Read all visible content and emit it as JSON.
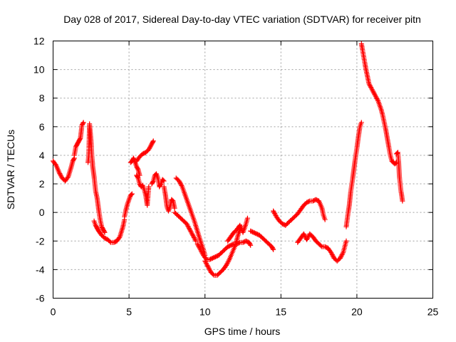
{
  "chart_data": {
    "type": "scatter",
    "title": "Day 028 of 2017, Sidereal Day-to-day VTEC variation (SDTVAR) for receiver pitn",
    "xlabel": "GPS time / hours",
    "ylabel": "SDTVAR / TECUs",
    "xlim": [
      0,
      25
    ],
    "ylim": [
      -6,
      12
    ],
    "xticks": [
      0,
      5,
      10,
      15,
      20,
      25
    ],
    "yticks": [
      -6,
      -4,
      -2,
      0,
      2,
      4,
      6,
      8,
      10,
      12
    ],
    "grid": true,
    "marker": "plus",
    "color": "#ff0000",
    "series": [
      {
        "segments": [
          {
            "x": [
              0.0,
              0.2,
              0.4,
              0.6,
              0.8,
              1.0,
              1.2,
              1.3,
              1.4
            ],
            "y": [
              3.6,
              3.3,
              2.8,
              2.4,
              2.2,
              2.5,
              3.2,
              3.6,
              3.8
            ]
          },
          {
            "x": [
              1.4,
              1.5,
              1.6,
              1.7,
              1.8,
              1.9,
              2.0
            ],
            "y": [
              4.0,
              4.6,
              4.8,
              5.0,
              5.2,
              6.1,
              6.3
            ]
          },
          {
            "x": [
              2.3,
              2.35,
              2.4,
              2.45,
              2.5,
              2.55,
              2.6
            ],
            "y": [
              3.5,
              4.0,
              6.2,
              5.6,
              5.0,
              4.0,
              3.4
            ]
          },
          {
            "x": [
              2.6,
              2.7,
              2.8,
              2.9,
              3.0,
              3.1,
              3.2,
              3.3,
              3.4
            ],
            "y": [
              3.3,
              2.5,
              1.5,
              1.0,
              0.2,
              -0.5,
              -1.0,
              -1.2,
              -1.4
            ]
          },
          {
            "x": [
              2.7,
              2.8,
              2.9,
              3.0,
              3.2,
              3.4,
              3.6,
              3.8,
              4.0,
              4.2,
              4.4,
              4.6,
              4.7
            ],
            "y": [
              -0.6,
              -0.9,
              -1.1,
              -1.3,
              -1.6,
              -1.8,
              -1.9,
              -2.1,
              -2.1,
              -2.0,
              -1.7,
              -1.0,
              -0.5
            ]
          },
          {
            "x": [
              4.7,
              4.8,
              4.9,
              5.0,
              5.1,
              5.2
            ],
            "y": [
              -0.3,
              0.2,
              0.6,
              0.9,
              1.2,
              1.3
            ]
          },
          {
            "x": [
              5.1,
              5.2,
              5.3,
              5.4,
              5.5,
              5.6,
              5.7
            ],
            "y": [
              3.5,
              3.6,
              3.8,
              3.5,
              3.2,
              3.0,
              2.6
            ]
          },
          {
            "x": [
              5.5,
              5.6,
              5.7,
              5.8,
              5.9,
              6.0,
              6.1,
              6.2,
              6.3
            ],
            "y": [
              2.6,
              2.4,
              2.0,
              1.8,
              1.9,
              1.6,
              1.2,
              0.5,
              1.8
            ]
          },
          {
            "x": [
              5.5,
              5.7,
              5.9,
              6.1,
              6.3,
              6.5,
              6.6
            ],
            "y": [
              3.6,
              3.9,
              4.1,
              4.2,
              4.4,
              4.8,
              5.0
            ]
          },
          {
            "x": [
              6.5,
              6.6,
              6.7,
              6.8,
              6.9,
              7.0,
              7.1,
              7.2,
              7.3
            ],
            "y": [
              2.0,
              2.2,
              2.6,
              2.7,
              2.4,
              1.8,
              2.0,
              2.3,
              2.2
            ]
          },
          {
            "x": [
              7.3,
              7.4,
              7.5,
              7.6,
              7.7,
              7.8,
              7.9,
              8.0
            ],
            "y": [
              1.8,
              1.2,
              0.4,
              0.1,
              0.4,
              0.9,
              0.8,
              0.3
            ]
          },
          {
            "x": [
              8.0,
              8.2,
              8.4,
              8.6,
              8.8,
              9.0,
              9.2,
              9.4
            ],
            "y": [
              0.0,
              -0.2,
              -0.4,
              -0.6,
              -0.8,
              -1.2,
              -1.6,
              -2.0
            ]
          },
          {
            "x": [
              8.1,
              8.3,
              8.5,
              8.7,
              8.9,
              9.1,
              9.3,
              9.5,
              9.7,
              9.9,
              10.0
            ],
            "y": [
              2.4,
              2.2,
              1.8,
              1.2,
              0.6,
              0.0,
              -0.6,
              -1.3,
              -2.0,
              -2.6,
              -3.0
            ]
          },
          {
            "x": [
              9.5,
              9.7,
              9.9,
              10.1,
              10.3,
              10.5,
              10.7,
              10.9,
              11.1,
              11.3,
              11.5,
              11.7,
              11.9,
              12.1,
              12.3,
              12.5,
              12.7,
              12.9,
              13.0
            ],
            "y": [
              -2.2,
              -2.6,
              -3.0,
              -3.3,
              -3.3,
              -3.2,
              -3.1,
              -3.0,
              -2.8,
              -2.6,
              -2.4,
              -2.3,
              -2.2,
              -2.2,
              -2.1,
              -2.1,
              -2.0,
              -2.1,
              -2.3
            ]
          },
          {
            "x": [
              10.0,
              10.2,
              10.4,
              10.6,
              10.8,
              11.0,
              11.2,
              11.4,
              11.6,
              11.8,
              12.0,
              12.2,
              12.4
            ],
            "y": [
              -3.4,
              -3.8,
              -4.2,
              -4.4,
              -4.4,
              -4.2,
              -4.0,
              -3.7,
              -3.3,
              -2.8,
              -2.3,
              -1.5,
              -1.0
            ]
          },
          {
            "x": [
              11.5,
              11.7,
              11.9,
              12.1,
              12.3,
              12.5,
              12.7,
              12.8
            ],
            "y": [
              -2.0,
              -1.7,
              -1.4,
              -1.2,
              -0.9,
              -1.4,
              -0.8,
              -0.4
            ]
          },
          {
            "x": [
              13.0,
              13.2,
              13.4,
              13.6,
              13.8,
              14.0,
              14.2,
              14.4,
              14.5
            ],
            "y": [
              -1.3,
              -1.4,
              -1.5,
              -1.6,
              -1.8,
              -2.0,
              -2.2,
              -2.4,
              -2.6
            ]
          },
          {
            "x": [
              14.5,
              14.7,
              14.9,
              15.1,
              15.3,
              15.5,
              15.7,
              15.9,
              16.1,
              16.3,
              16.5,
              16.7,
              16.9,
              17.1,
              17.3,
              17.5,
              17.7,
              17.8,
              17.9
            ],
            "y": [
              0.1,
              -0.3,
              -0.6,
              -0.8,
              -0.9,
              -0.7,
              -0.5,
              -0.3,
              -0.1,
              0.2,
              0.5,
              0.7,
              0.8,
              0.8,
              0.9,
              0.8,
              0.3,
              -0.2,
              -0.5
            ]
          },
          {
            "x": [
              16.1,
              16.3,
              16.5,
              16.7,
              16.9,
              17.1,
              17.3,
              17.5,
              17.7,
              17.9,
              18.1,
              18.3,
              18.5,
              18.7,
              18.9,
              19.1,
              19.3
            ],
            "y": [
              -2.1,
              -1.8,
              -1.5,
              -1.9,
              -1.5,
              -1.7,
              -2.0,
              -2.2,
              -2.4,
              -2.4,
              -2.5,
              -2.8,
              -3.2,
              -3.4,
              -3.2,
              -2.8,
              -2.0
            ]
          },
          {
            "x": [
              19.3,
              19.4,
              19.5,
              19.6,
              19.7,
              19.8,
              19.9,
              20.0,
              20.1,
              20.2,
              20.3
            ],
            "y": [
              -1.0,
              -0.2,
              0.5,
              1.5,
              2.2,
              3.0,
              3.8,
              4.5,
              5.3,
              6.0,
              6.3
            ]
          },
          {
            "x": [
              20.3,
              20.4,
              20.5,
              20.6,
              20.7,
              20.8,
              21.0,
              21.2,
              21.4,
              21.5,
              21.6,
              21.7,
              21.8,
              21.9,
              22.0,
              22.1,
              22.2,
              22.3,
              22.4,
              22.5,
              22.6
            ],
            "y": [
              11.8,
              11.2,
              10.6,
              10.0,
              9.5,
              9.0,
              8.6,
              8.2,
              7.8,
              7.5,
              7.2,
              6.8,
              6.3,
              5.8,
              5.2,
              4.6,
              4.0,
              3.6,
              3.5,
              3.4,
              3.5
            ]
          },
          {
            "x": [
              22.6,
              22.7,
              22.75,
              22.8,
              22.85,
              22.9,
              22.95,
              23.0
            ],
            "y": [
              4.1,
              4.2,
              3.5,
              2.5,
              2.0,
              1.5,
              1.2,
              0.8
            ]
          }
        ]
      }
    ]
  }
}
